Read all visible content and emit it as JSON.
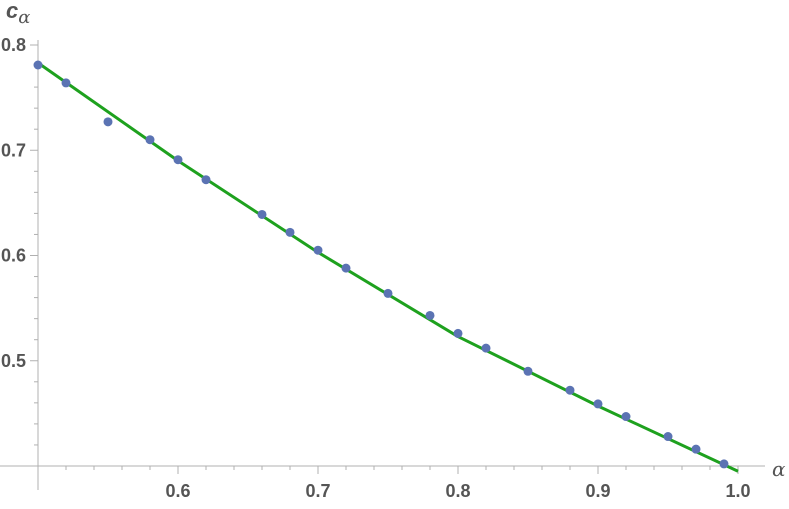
{
  "chart_data": {
    "type": "scatter",
    "xlabel": "α",
    "ylabel": {
      "main": "c",
      "sub": "α"
    },
    "xlim": [
      0.5,
      1.0
    ],
    "ylim": [
      0.4,
      0.8
    ],
    "x_ticks": [
      "0.6",
      "0.7",
      "0.8",
      "0.9",
      "1.0"
    ],
    "y_ticks": [
      "0.5",
      "0.6",
      "0.7",
      "0.8"
    ],
    "x_tick_values": [
      0.6,
      0.7,
      0.8,
      0.9,
      1.0
    ],
    "y_tick_values": [
      0.5,
      0.6,
      0.7,
      0.8
    ],
    "grid": false,
    "colors": {
      "points": "#5b73b3",
      "line": "#1ea11e",
      "axis": "#b0b0b0",
      "text": "#555555"
    },
    "series": [
      {
        "kind": "points",
        "x": [
          0.5,
          0.52,
          0.55,
          0.58,
          0.6,
          0.62,
          0.66,
          0.68,
          0.7,
          0.72,
          0.75,
          0.78,
          0.8,
          0.82,
          0.85,
          0.88,
          0.9,
          0.92,
          0.95,
          0.97,
          0.99
        ],
        "y": [
          0.781,
          0.764,
          0.727,
          0.71,
          0.691,
          0.672,
          0.639,
          0.622,
          0.605,
          0.588,
          0.564,
          0.543,
          0.526,
          0.512,
          0.49,
          0.472,
          0.459,
          0.447,
          0.428,
          0.416,
          0.402
        ]
      },
      {
        "kind": "line",
        "x": [
          0.5,
          0.6,
          0.7,
          0.8,
          0.9,
          1.0
        ],
        "y": [
          0.783,
          0.69,
          0.603,
          0.523,
          0.457,
          0.395
        ]
      }
    ]
  }
}
